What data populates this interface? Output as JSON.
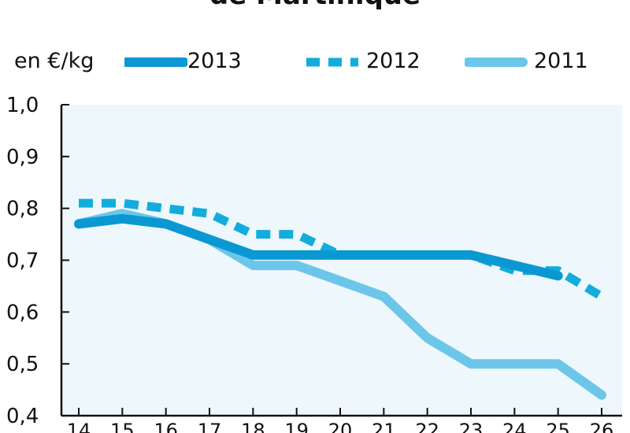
{
  "chart_data": {
    "type": "line",
    "title": "de Martinique",
    "ylabel": "en €/kg",
    "xlabel": "",
    "x": [
      "14",
      "15",
      "16",
      "17",
      "18",
      "19",
      "20",
      "21",
      "22",
      "23",
      "24",
      "25",
      "26"
    ],
    "ylim": [
      0.4,
      1.0
    ],
    "y_ticks": [
      "1,0",
      "0,9",
      "0,8",
      "0,7",
      "0,6",
      "0,5",
      "0,4"
    ],
    "grid": false,
    "legend_placement": "top",
    "series": [
      {
        "name": "2013",
        "style": "solid",
        "color": "#0a98d3",
        "values": [
          0.77,
          0.78,
          0.77,
          0.74,
          0.71,
          0.71,
          0.71,
          0.71,
          0.71,
          0.71,
          0.69,
          0.67,
          null
        ]
      },
      {
        "name": "2012",
        "style": "dashed",
        "color": "#13acdc",
        "values": [
          0.81,
          0.81,
          0.8,
          0.79,
          0.75,
          0.75,
          0.71,
          0.71,
          0.71,
          0.71,
          0.68,
          0.68,
          0.63
        ]
      },
      {
        "name": "2011",
        "style": "solid",
        "color": "#6cc6ea",
        "values": [
          0.77,
          0.79,
          0.77,
          0.74,
          0.69,
          0.69,
          0.66,
          0.63,
          0.55,
          0.5,
          0.5,
          0.5,
          0.44
        ]
      }
    ],
    "colors": {
      "plot_background": "#eef7fb",
      "axis": "#111111"
    }
  }
}
